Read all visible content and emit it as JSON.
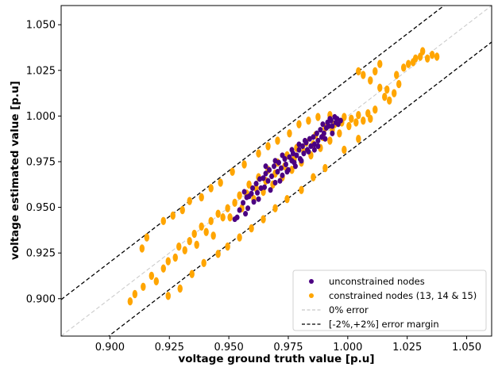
{
  "chart_data": {
    "type": "scatter",
    "title": "",
    "xlabel": "voltage ground truth value [p.u]",
    "ylabel": "voltage estimated value [p.u]",
    "xlim": [
      0.8795,
      1.0605
    ],
    "ylim": [
      0.8795,
      1.0605
    ],
    "xticks": [
      "0.900",
      "0.925",
      "0.950",
      "0.975",
      "1.000",
      "1.025",
      "1.050"
    ],
    "yticks": [
      "0.900",
      "0.925",
      "0.950",
      "0.975",
      "1.000",
      "1.025",
      "1.050"
    ],
    "grid": false,
    "legend_position": "lower-right",
    "colors": {
      "unconstrained": "#4b0082",
      "constrained": "#ffa500",
      "zero_error": "#c8c8c8",
      "error_margin": "#000000"
    },
    "series": [
      {
        "name": "unconstrained nodes",
        "kind": "scatter",
        "color": "#4b0082",
        "points": [
          [
            0.9535,
            0.9445
          ],
          [
            0.9545,
            0.9485
          ],
          [
            0.956,
            0.9525
          ],
          [
            0.9575,
            0.9555
          ],
          [
            0.9585,
            0.956
          ],
          [
            0.96,
            0.9605
          ],
          [
            0.9605,
            0.953
          ],
          [
            0.9615,
            0.963
          ],
          [
            0.962,
            0.958
          ],
          [
            0.963,
            0.9655
          ],
          [
            0.9645,
            0.966
          ],
          [
            0.965,
            0.961
          ],
          [
            0.9655,
            0.9685
          ],
          [
            0.9665,
            0.9645
          ],
          [
            0.967,
            0.9705
          ],
          [
            0.968,
            0.967
          ],
          [
            0.969,
            0.9725
          ],
          [
            0.9695,
            0.9635
          ],
          [
            0.9705,
            0.9695
          ],
          [
            0.971,
            0.9745
          ],
          [
            0.972,
            0.9715
          ],
          [
            0.9725,
            0.9675
          ],
          [
            0.9735,
            0.9765
          ],
          [
            0.974,
            0.9735
          ],
          [
            0.975,
            0.9705
          ],
          [
            0.9755,
            0.9775
          ],
          [
            0.9765,
            0.9755
          ],
          [
            0.977,
            0.9795
          ],
          [
            0.978,
            0.9725
          ],
          [
            0.9785,
            0.9785
          ],
          [
            0.9795,
            0.9815
          ],
          [
            0.98,
            0.9765
          ],
          [
            0.981,
            0.9835
          ],
          [
            0.9815,
            0.9795
          ],
          [
            0.9825,
            0.9855
          ],
          [
            0.983,
            0.9815
          ],
          [
            0.984,
            0.9875
          ],
          [
            0.9845,
            0.9835
          ],
          [
            0.9855,
            0.9885
          ],
          [
            0.986,
            0.9845
          ],
          [
            0.987,
            0.9905
          ],
          [
            0.9875,
            0.9865
          ],
          [
            0.9885,
            0.9925
          ],
          [
            0.989,
            0.9885
          ],
          [
            0.9895,
            0.9955
          ],
          [
            0.99,
            0.9905
          ],
          [
            0.991,
            0.9935
          ],
          [
            0.9915,
            0.9965
          ],
          [
            0.992,
            0.9945
          ],
          [
            0.9925,
            0.9985
          ],
          [
            0.993,
            0.9975
          ],
          [
            0.9935,
            0.9945
          ],
          [
            0.9945,
            0.9995
          ],
          [
            0.995,
            0.9965
          ],
          [
            0.9955,
            0.9985
          ],
          [
            0.996,
            0.9955
          ],
          [
            0.997,
            0.9975
          ],
          [
            0.957,
            0.9465
          ],
          [
            0.9625,
            0.9545
          ],
          [
            0.9675,
            0.9595
          ],
          [
            0.9715,
            0.9645
          ],
          [
            0.9745,
            0.9695
          ],
          [
            0.9775,
            0.9745
          ],
          [
            0.9805,
            0.9755
          ],
          [
            0.9835,
            0.9805
          ],
          [
            0.986,
            0.9815
          ],
          [
            0.9695,
            0.9755
          ],
          [
            0.9725,
            0.9785
          ],
          [
            0.9765,
            0.9815
          ],
          [
            0.9795,
            0.9845
          ],
          [
            0.982,
            0.9865
          ],
          [
            0.9655,
            0.9725
          ],
          [
            0.9635,
            0.9605
          ],
          [
            0.9595,
            0.9575
          ],
          [
            0.958,
            0.9495
          ],
          [
            0.9525,
            0.9435
          ],
          [
            0.9565,
            0.9585
          ],
          [
            0.9875,
            0.9835
          ],
          [
            0.9905,
            0.9875
          ],
          [
            0.9935,
            0.9905
          ]
        ]
      },
      {
        "name": "constrained nodes (13, 14 & 15)",
        "kind": "scatter",
        "color": "#ffa500",
        "points": [
          [
            0.9085,
            0.8985
          ],
          [
            0.9105,
            0.9025
          ],
          [
            0.914,
            0.9065
          ],
          [
            0.9175,
            0.9125
          ],
          [
            0.9195,
            0.9095
          ],
          [
            0.9225,
            0.9165
          ],
          [
            0.9245,
            0.9205
          ],
          [
            0.9275,
            0.9225
          ],
          [
            0.929,
            0.9285
          ],
          [
            0.9315,
            0.9265
          ],
          [
            0.9335,
            0.9315
          ],
          [
            0.9355,
            0.9355
          ],
          [
            0.9365,
            0.9295
          ],
          [
            0.9385,
            0.9395
          ],
          [
            0.9405,
            0.9365
          ],
          [
            0.9425,
            0.9425
          ],
          [
            0.9435,
            0.9345
          ],
          [
            0.9455,
            0.9465
          ],
          [
            0.9475,
            0.9445
          ],
          [
            0.9495,
            0.9495
          ],
          [
            0.9505,
            0.9445
          ],
          [
            0.9525,
            0.9525
          ],
          [
            0.9545,
            0.9565
          ],
          [
            0.9555,
            0.9495
          ],
          [
            0.9575,
            0.9575
          ],
          [
            0.9585,
            0.9625
          ],
          [
            0.9605,
            0.9545
          ],
          [
            0.9615,
            0.9605
          ],
          [
            0.9625,
            0.9665
          ],
          [
            0.9645,
            0.9585
          ],
          [
            0.9655,
            0.9645
          ],
          [
            0.9665,
            0.9705
          ],
          [
            0.9685,
            0.9625
          ],
          [
            0.9695,
            0.9685
          ],
          [
            0.9705,
            0.9745
          ],
          [
            0.9725,
            0.9665
          ],
          [
            0.9735,
            0.9725
          ],
          [
            0.9745,
            0.9785
          ],
          [
            0.9765,
            0.9705
          ],
          [
            0.9775,
            0.9765
          ],
          [
            0.9785,
            0.9825
          ],
          [
            0.9805,
            0.9745
          ],
          [
            0.9815,
            0.9805
          ],
          [
            0.9825,
            0.9855
          ],
          [
            0.9845,
            0.9785
          ],
          [
            0.9855,
            0.9845
          ],
          [
            0.9865,
            0.9895
          ],
          [
            0.9885,
            0.9825
          ],
          [
            0.9895,
            0.9885
          ],
          [
            0.9905,
            0.9935
          ],
          [
            0.9925,
            0.9865
          ],
          [
            0.9935,
            0.9925
          ],
          [
            0.9945,
            0.9955
          ],
          [
            0.9965,
            0.9905
          ],
          [
            0.9975,
            0.9965
          ],
          [
            0.9985,
            0.9995
          ],
          [
            1.0005,
            0.9945
          ],
          [
            1.0015,
            0.9985
          ],
          [
            1.0035,
            0.9965
          ],
          [
            1.0045,
            1.0005
          ],
          [
            1.0065,
            0.9975
          ],
          [
            1.0085,
            1.0015
          ],
          [
            1.0095,
            0.9985
          ],
          [
            1.0115,
            1.0035
          ],
          [
            1.0135,
            1.0155
          ],
          [
            1.0155,
            1.0105
          ],
          [
            1.0165,
            1.0145
          ],
          [
            1.0175,
            1.0085
          ],
          [
            1.0195,
            1.0125
          ],
          [
            1.0205,
            1.0225
          ],
          [
            1.0215,
            1.0175
          ],
          [
            1.0235,
            1.0265
          ],
          [
            1.0255,
            1.0285
          ],
          [
            1.0275,
            1.0295
          ],
          [
            1.0285,
            1.0315
          ],
          [
            1.0305,
            1.0325
          ],
          [
            1.0315,
            1.0355
          ],
          [
            1.0335,
            1.0315
          ],
          [
            1.0355,
            1.0335
          ],
          [
            1.0375,
            1.0325
          ],
          [
            1.0045,
            1.0245
          ],
          [
            1.0065,
            1.0225
          ],
          [
            1.0095,
            1.0195
          ],
          [
            1.0115,
            1.0245
          ],
          [
            1.0135,
            1.0285
          ],
          [
            0.9135,
            0.9275
          ],
          [
            0.9155,
            0.9335
          ],
          [
            0.9225,
            0.9425
          ],
          [
            0.9305,
            0.9485
          ],
          [
            0.9335,
            0.9535
          ],
          [
            0.9265,
            0.9455
          ],
          [
            0.9385,
            0.9555
          ],
          [
            0.9425,
            0.9605
          ],
          [
            0.9465,
            0.9635
          ],
          [
            0.9515,
            0.9695
          ],
          [
            0.9565,
            0.9735
          ],
          [
            0.9625,
            0.9795
          ],
          [
            0.9665,
            0.9835
          ],
          [
            0.9705,
            0.9865
          ],
          [
            0.9755,
            0.9905
          ],
          [
            0.9795,
            0.9955
          ],
          [
            0.9835,
            0.9975
          ],
          [
            0.9875,
            0.9995
          ],
          [
            0.9925,
            1.0005
          ],
          [
            0.9245,
            0.9015
          ],
          [
            0.9295,
            0.9055
          ],
          [
            0.9345,
            0.9135
          ],
          [
            0.9395,
            0.9195
          ],
          [
            0.9455,
            0.9245
          ],
          [
            0.9495,
            0.9285
          ],
          [
            0.9545,
            0.9335
          ],
          [
            0.9595,
            0.9385
          ],
          [
            0.9645,
            0.9435
          ],
          [
            0.9695,
            0.9495
          ],
          [
            0.9745,
            0.9545
          ],
          [
            0.9805,
            0.9595
          ],
          [
            0.9855,
            0.9665
          ],
          [
            0.9905,
            0.9715
          ],
          [
            0.9985,
            0.9815
          ],
          [
            1.0045,
            0.9875
          ]
        ]
      },
      {
        "name": "0% error",
        "kind": "line",
        "style": "dashed",
        "color": "#c8c8c8",
        "x": [
          0.8795,
          1.0605
        ],
        "y": [
          0.8795,
          1.0605
        ]
      },
      {
        "name": "[-2%,+2%] error margin",
        "kind": "line",
        "style": "dashed",
        "color": "#000000",
        "lines": [
          {
            "x": [
              0.8795,
              1.0605
            ],
            "y": [
              0.8995,
              1.0805
            ]
          },
          {
            "x": [
              0.8795,
              1.0605
            ],
            "y": [
              0.8595,
              1.0405
            ]
          }
        ]
      }
    ]
  },
  "legend": {
    "items": [
      {
        "label": "unconstrained nodes",
        "kind": "marker",
        "color": "#4b0082"
      },
      {
        "label": "constrained nodes (13, 14 & 15)",
        "kind": "marker",
        "color": "#ffa500"
      },
      {
        "label": "0% error",
        "kind": "line",
        "color": "#c8c8c8"
      },
      {
        "label": "[-2%,+2%] error margin",
        "kind": "line",
        "color": "#000000"
      }
    ]
  }
}
